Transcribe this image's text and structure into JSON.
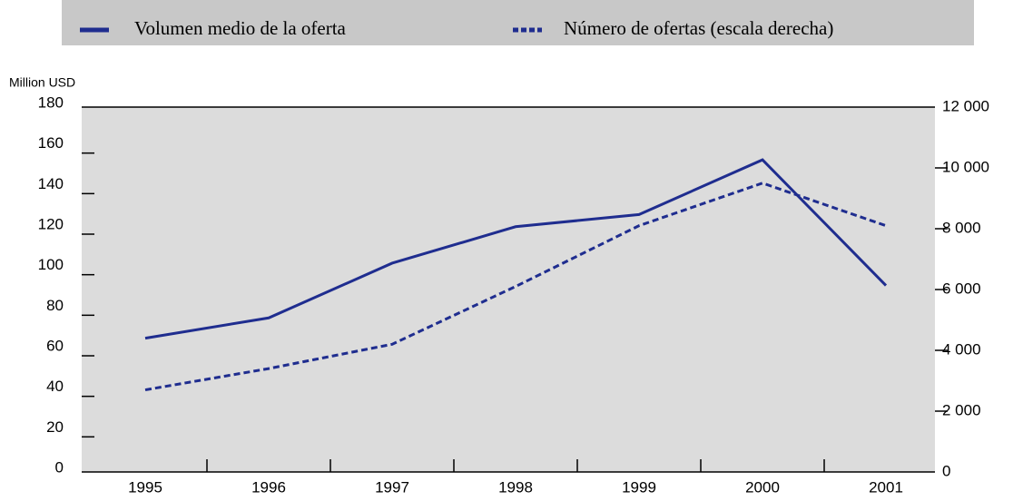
{
  "chart_data": {
    "type": "line",
    "y_axis_label": "Million USD",
    "categories": [
      "1995",
      "1996",
      "1997",
      "1998",
      "1999",
      "2000",
      "2001"
    ],
    "series": [
      {
        "name": "Volumen medio de la oferta",
        "color": "#1f2d8f",
        "values": [
          66,
          76,
          103,
          121,
          127,
          154,
          92
        ]
      },
      {
        "name": "Número de ofertas (escala derecha)",
        "color": "#1f2d8f",
        "axis": "y2",
        "dashed": true,
        "values": [
          2700,
          3400,
          4200,
          6100,
          8100,
          9500,
          8100
        ]
      }
    ],
    "ylim": [
      0,
      180
    ],
    "yticks": [
      0,
      20,
      40,
      60,
      80,
      100,
      120,
      140,
      160,
      180
    ],
    "y2lim": [
      0,
      12000
    ],
    "y2ticks": [
      0,
      {
        "value": 2000,
        "label": "2 000"
      },
      {
        "value": 4000,
        "label": "4 000"
      },
      {
        "value": 6000,
        "label": "6 000"
      },
      {
        "value": 8000,
        "label": "8 000"
      },
      {
        "value": 10000,
        "label": "10 000"
      },
      {
        "value": 12000,
        "label": "12 000"
      }
    ],
    "legend": "top"
  }
}
